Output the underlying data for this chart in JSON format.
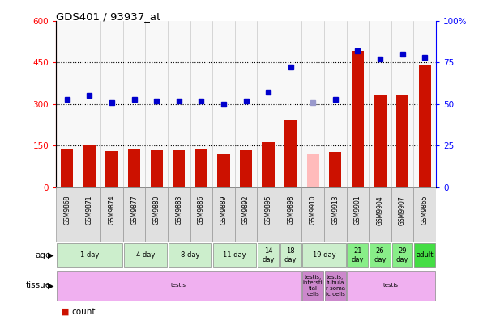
{
  "title": "GDS401 / 93937_at",
  "samples": [
    "GSM9868",
    "GSM9871",
    "GSM9874",
    "GSM9877",
    "GSM9880",
    "GSM9883",
    "GSM9886",
    "GSM9889",
    "GSM9892",
    "GSM9895",
    "GSM9898",
    "GSM9910",
    "GSM9913",
    "GSM9901",
    "GSM9904",
    "GSM9907",
    "GSM9865"
  ],
  "count_values": [
    140,
    152,
    130,
    140,
    132,
    133,
    138,
    122,
    133,
    162,
    243,
    120,
    127,
    490,
    332,
    330,
    440
  ],
  "count_absent": [
    false,
    false,
    false,
    false,
    false,
    false,
    false,
    false,
    false,
    false,
    false,
    true,
    false,
    false,
    false,
    false,
    false
  ],
  "rank_values": [
    53,
    55,
    51,
    53,
    52,
    52,
    52,
    50,
    52,
    57,
    72,
    51,
    53,
    82,
    77,
    80,
    78
  ],
  "rank_absent": [
    false,
    false,
    false,
    false,
    false,
    false,
    false,
    false,
    false,
    false,
    false,
    true,
    false,
    false,
    false,
    false,
    false
  ],
  "age_groups": [
    {
      "label": "1 day",
      "start": 0,
      "end": 3,
      "color": "#cceecc"
    },
    {
      "label": "4 day",
      "start": 3,
      "end": 5,
      "color": "#cceecc"
    },
    {
      "label": "8 day",
      "start": 5,
      "end": 7,
      "color": "#cceecc"
    },
    {
      "label": "11 day",
      "start": 7,
      "end": 9,
      "color": "#cceecc"
    },
    {
      "label": "14\nday",
      "start": 9,
      "end": 10,
      "color": "#cceecc"
    },
    {
      "label": "18\nday",
      "start": 10,
      "end": 11,
      "color": "#cceecc"
    },
    {
      "label": "19 day",
      "start": 11,
      "end": 13,
      "color": "#cceecc"
    },
    {
      "label": "21\nday",
      "start": 13,
      "end": 14,
      "color": "#88ee88"
    },
    {
      "label": "26\nday",
      "start": 14,
      "end": 15,
      "color": "#88ee88"
    },
    {
      "label": "29\nday",
      "start": 15,
      "end": 16,
      "color": "#88ee88"
    },
    {
      "label": "adult",
      "start": 16,
      "end": 17,
      "color": "#44dd44"
    }
  ],
  "tissue_groups": [
    {
      "label": "testis",
      "start": 0,
      "end": 11,
      "color": "#f0b0f0"
    },
    {
      "label": "testis,\nintersti\ntial\ncells",
      "start": 11,
      "end": 12,
      "color": "#cc88cc"
    },
    {
      "label": "testis,\ntubula\nr soma\nic cells",
      "start": 12,
      "end": 13,
      "color": "#cc88cc"
    },
    {
      "label": "testis",
      "start": 13,
      "end": 17,
      "color": "#f0b0f0"
    }
  ],
  "ylim_left": [
    0,
    600
  ],
  "ylim_right": [
    0,
    100
  ],
  "yticks_left": [
    0,
    150,
    300,
    450,
    600
  ],
  "yticks_right": [
    0,
    25,
    50,
    75,
    100
  ],
  "bar_color": "#cc1100",
  "bar_absent_color": "#ffbbbb",
  "dot_color": "#0000cc",
  "dot_absent_color": "#9999cc",
  "dotted_lines": [
    150,
    300,
    450
  ],
  "n_samples": 17
}
